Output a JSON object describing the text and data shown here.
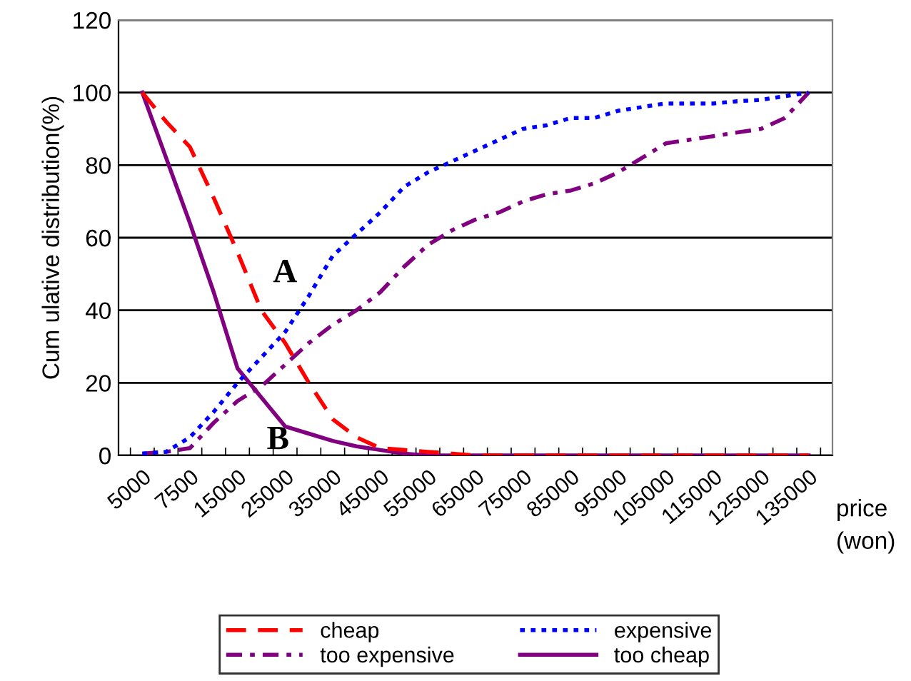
{
  "chart_data": {
    "type": "line",
    "ylabel": "Cum ulative distribution(%)",
    "xlabel": "price\n(won)",
    "categories": [
      "5000",
      null,
      "7500",
      null,
      "15000",
      null,
      "25000",
      null,
      "35000",
      null,
      "45000",
      null,
      "55000",
      null,
      "65000",
      null,
      "75000",
      null,
      "85000",
      null,
      "95000",
      null,
      "105000",
      null,
      "115000",
      null,
      "125000",
      null,
      "135000"
    ],
    "series": [
      {
        "name": "cheap",
        "color": "#ff0000",
        "line_style": "dashed",
        "values": [
          100,
          92,
          85,
          71,
          56,
          40,
          31,
          20,
          10,
          5,
          2,
          1.5,
          1,
          0.5,
          0,
          0,
          0,
          0,
          0,
          0,
          0,
          0,
          0,
          0,
          0,
          0,
          0,
          0,
          0
        ]
      },
      {
        "name": "expensive",
        "color": "#0000ff",
        "line_style": "dotted",
        "values": [
          0.5,
          1,
          5,
          12,
          20,
          27,
          34,
          44,
          55,
          61,
          67,
          74,
          78,
          81,
          84,
          87,
          90,
          91,
          93,
          93,
          95,
          96,
          97,
          97,
          97,
          97.6,
          98,
          99,
          100
        ]
      },
      {
        "name": "too expensive",
        "color": "#800080",
        "line_style": "dashdot",
        "values": [
          0.5,
          1,
          2,
          9,
          15,
          19,
          25,
          31,
          36,
          40,
          45,
          52,
          58,
          62,
          65,
          67,
          70,
          72,
          73,
          75,
          78,
          82,
          86,
          87,
          88,
          89,
          90,
          93,
          100
        ]
      },
      {
        "name": "too cheap",
        "color": "#800080",
        "line_style": "solid",
        "values": [
          100,
          82,
          64,
          45,
          24,
          16,
          8,
          6,
          4,
          2.5,
          1.5,
          0.5,
          0,
          0,
          0,
          0,
          0,
          0,
          0,
          0,
          0,
          0,
          0,
          0,
          0,
          0,
          0,
          0,
          0
        ]
      }
    ],
    "ylim": [
      0,
      120
    ],
    "yticks": [
      0,
      20,
      40,
      60,
      80,
      100,
      120
    ],
    "grid": "y",
    "legend": "bottom",
    "marker": "none",
    "annotations": [
      "A",
      "B"
    ]
  }
}
